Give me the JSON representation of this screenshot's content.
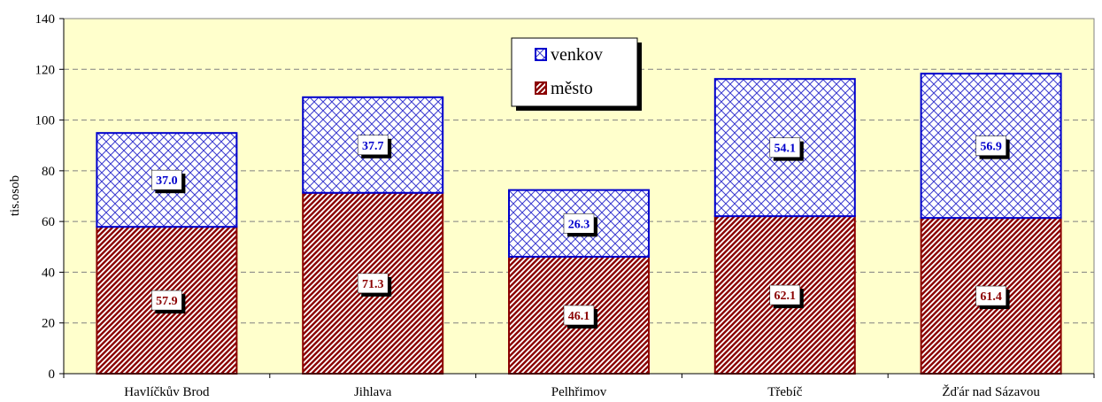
{
  "chart_data": {
    "type": "bar",
    "stacked": true,
    "categories": [
      "Havlíčkův Brod",
      "Jihlava",
      "Pelhřimov",
      "Třebíč",
      "Žďár nad Sázavou"
    ],
    "series": [
      {
        "name": "město",
        "values": [
          57.9,
          71.3,
          46.1,
          62.1,
          61.4
        ],
        "color": "#8b0000",
        "pattern": "diagonal-hatch"
      },
      {
        "name": "venkov",
        "values": [
          37.0,
          37.7,
          26.3,
          54.1,
          56.9
        ],
        "color": "#0000cc",
        "pattern": "cross-hatch"
      }
    ],
    "ylabel": "tis.osob",
    "xlabel": "",
    "ylim": [
      0,
      140
    ],
    "yticks": [
      0,
      20,
      40,
      60,
      80,
      100,
      120,
      140
    ],
    "grid": true,
    "legend_position": "top-center",
    "plot_background": "#ffffcc"
  }
}
